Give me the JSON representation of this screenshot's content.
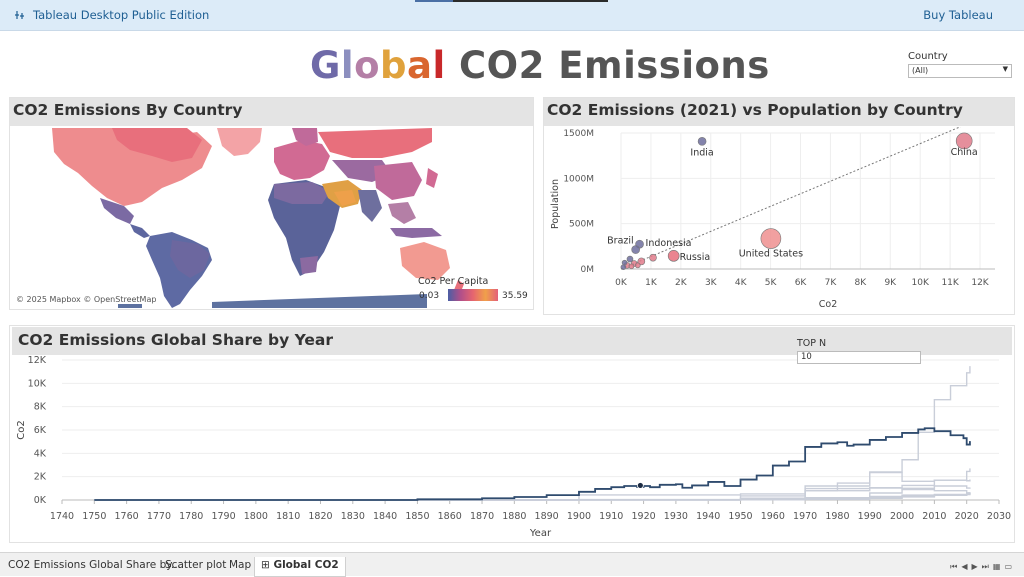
{
  "app": {
    "title": "Tableau Desktop Public Edition",
    "buy_label": "Buy Tableau"
  },
  "dashboard": {
    "title_letters": [
      {
        "ch": "G",
        "color": "#6f6aa8"
      },
      {
        "ch": "l",
        "color": "#8c8fbf"
      },
      {
        "ch": "o",
        "color": "#b47fa6"
      },
      {
        "ch": "b",
        "color": "#e0a23c"
      },
      {
        "ch": "a",
        "color": "#d9662f"
      },
      {
        "ch": "l",
        "color": "#c8282a"
      },
      {
        "ch": " CO2 Emissions",
        "color": "#555555"
      }
    ]
  },
  "filter": {
    "label": "Country",
    "value": "(All)"
  },
  "map_panel": {
    "title": "CO2 Emissions By Country",
    "credit": "© 2025 Mapbox © OpenStreetMap",
    "legend": {
      "title": "Co2 Per Capita",
      "min": "0.03",
      "max": "35.59"
    }
  },
  "scatter_panel": {
    "title": "CO2 Emissions (2021) vs Population by Country"
  },
  "line_panel": {
    "title": "CO2 Emissions Global Share by Year",
    "topn": {
      "label": "TOP N",
      "value": "10"
    }
  },
  "chart_data": [
    {
      "type": "scatter",
      "xlabel": "Co2",
      "ylabel": "Population",
      "x_ticks": [
        "0K",
        "1K",
        "2K",
        "3K",
        "4K",
        "5K",
        "6K",
        "7K",
        "8K",
        "9K",
        "10K",
        "11K",
        "12K"
      ],
      "y_ticks": [
        "0M",
        "500M",
        "1000M",
        "1500M"
      ],
      "xlim": [
        0,
        12500
      ],
      "ylim": [
        0,
        1500
      ],
      "trend_line": [
        [
          0,
          0
        ],
        [
          11400,
          1500
        ]
      ],
      "points": [
        {
          "label": "China",
          "x": 11470,
          "y": 1412,
          "size": 8,
          "color": "#e07b8b"
        },
        {
          "label": "India",
          "x": 2710,
          "y": 1408,
          "size": 4,
          "color": "#6e6f9e"
        },
        {
          "label": "United States",
          "x": 5010,
          "y": 336,
          "size": 10,
          "color": "#ef8f8f"
        },
        {
          "label": "Russia",
          "x": 1760,
          "y": 145,
          "size": 5.5,
          "color": "#e86f7c"
        },
        {
          "label": "Indonesia",
          "x": 620,
          "y": 274,
          "size": 4,
          "color": "#6e6f9e"
        },
        {
          "label": "Brazil",
          "x": 490,
          "y": 214,
          "size": 4,
          "color": "#6e6f9e"
        },
        {
          "label": "",
          "x": 1070,
          "y": 125,
          "size": 3.5,
          "color": "#e07b8b"
        },
        {
          "label": "",
          "x": 680,
          "y": 84,
          "size": 3.5,
          "color": "#e07b8b"
        },
        {
          "label": "",
          "x": 440,
          "y": 60,
          "size": 3,
          "color": "#e07b8b"
        },
        {
          "label": "",
          "x": 300,
          "y": 110,
          "size": 3,
          "color": "#6e6f9e"
        },
        {
          "label": "",
          "x": 200,
          "y": 40,
          "size": 3,
          "color": "#e07b8b"
        },
        {
          "label": "",
          "x": 120,
          "y": 70,
          "size": 2.5,
          "color": "#6e6f9e"
        },
        {
          "label": "",
          "x": 80,
          "y": 20,
          "size": 2.5,
          "color": "#6e6f9e"
        },
        {
          "label": "",
          "x": 350,
          "y": 30,
          "size": 2.5,
          "color": "#e07b8b"
        },
        {
          "label": "",
          "x": 560,
          "y": 40,
          "size": 2.5,
          "color": "#e07b8b"
        }
      ]
    },
    {
      "type": "line",
      "xlabel": "Year",
      "ylabel": "Co2",
      "x_ticks": [
        "1740",
        "1750",
        "1760",
        "1770",
        "1780",
        "1790",
        "1800",
        "1810",
        "1820",
        "1830",
        "1840",
        "1850",
        "1860",
        "1870",
        "1880",
        "1890",
        "1900",
        "1910",
        "1920",
        "1930",
        "1940",
        "1950",
        "1960",
        "1970",
        "1980",
        "1990",
        "2000",
        "2010",
        "2020",
        "2030"
      ],
      "y_ticks": [
        "0K",
        "2K",
        "4K",
        "6K",
        "8K",
        "10K",
        "12K"
      ],
      "xlim": [
        1740,
        2030
      ],
      "ylim": [
        0,
        12000
      ],
      "highlight_color": "#2f4b6e",
      "other_color": "#c9ced9",
      "series": [
        {
          "highlight": true,
          "x": [
            1750,
            1800,
            1850,
            1870,
            1880,
            1890,
            1900,
            1905,
            1910,
            1914,
            1918,
            1920,
            1922,
            1925,
            1930,
            1932,
            1935,
            1940,
            1945,
            1950,
            1955,
            1960,
            1965,
            1970,
            1975,
            1980,
            1983,
            1985,
            1990,
            1995,
            2000,
            2005,
            2007,
            2010,
            2015,
            2019,
            2020,
            2021
          ],
          "y": [
            0,
            0,
            60,
            150,
            260,
            420,
            700,
            950,
            1100,
            1200,
            1120,
            1200,
            1100,
            1300,
            1350,
            1050,
            1250,
            1550,
            1200,
            1750,
            2100,
            2950,
            3300,
            4550,
            4850,
            4950,
            4650,
            4750,
            5150,
            5400,
            5750,
            6050,
            6150,
            5900,
            5550,
            5300,
            4750,
            5050
          ]
        },
        {
          "highlight": false,
          "x": [
            1750,
            1850,
            1900,
            1950,
            1970,
            1980,
            1990,
            2000,
            2005,
            2010,
            2015,
            2020,
            2021
          ],
          "y": [
            0,
            0,
            10,
            80,
            800,
            1450,
            2400,
            3450,
            5800,
            8600,
            9800,
            10900,
            11470
          ]
        },
        {
          "highlight": false,
          "x": [
            1750,
            1900,
            1950,
            1970,
            1990,
            2000,
            2010,
            2020,
            2021
          ],
          "y": [
            0,
            10,
            60,
            200,
            600,
            1000,
            1700,
            2450,
            2710
          ]
        },
        {
          "highlight": false,
          "x": [
            1750,
            1850,
            1900,
            1950,
            1970,
            1990,
            2000,
            2010,
            2020,
            2021
          ],
          "y": [
            0,
            0,
            40,
            350,
            1200,
            2350,
            1600,
            1700,
            1650,
            1760
          ]
        },
        {
          "highlight": false,
          "x": [
            1750,
            1900,
            1950,
            1970,
            1990,
            2000,
            2010,
            2020,
            2021
          ],
          "y": [
            0,
            10,
            150,
            800,
            1050,
            1250,
            1200,
            1020,
            1070
          ]
        },
        {
          "highlight": false,
          "x": [
            1750,
            1850,
            1900,
            1950,
            1970,
            1990,
            2000,
            2010,
            2020,
            2021
          ],
          "y": [
            0,
            20,
            430,
            520,
            980,
            1020,
            900,
            800,
            620,
            680
          ]
        },
        {
          "highlight": false,
          "x": [
            1750,
            1900,
            1950,
            1970,
            1990,
            2000,
            2010,
            2020,
            2021
          ],
          "y": [
            0,
            5,
            50,
            200,
            300,
            420,
            480,
            500,
            560
          ]
        },
        {
          "highlight": false,
          "x": [
            1750,
            1900,
            1950,
            1970,
            1990,
            2000,
            2010,
            2020,
            2021
          ],
          "y": [
            0,
            5,
            20,
            80,
            200,
            310,
            420,
            560,
            600
          ]
        },
        {
          "highlight": false,
          "x": [
            1750,
            1900,
            1950,
            1970,
            1990,
            2000,
            2010,
            2020,
            2021
          ],
          "y": [
            0,
            5,
            30,
            120,
            250,
            330,
            420,
            590,
            620
          ]
        },
        {
          "highlight": false,
          "x": [
            1750,
            1900,
            1950,
            1970,
            1990,
            2000,
            2010,
            2020,
            2021
          ],
          "y": [
            0,
            5,
            15,
            60,
            150,
            260,
            400,
            470,
            490
          ]
        }
      ],
      "marker": {
        "x": 1919,
        "y": 1250
      }
    }
  ],
  "tabs": [
    {
      "label": "CO2 Emissions Global Share by...",
      "icon": "",
      "active": false
    },
    {
      "label": "Scatter plot",
      "icon": "",
      "active": false
    },
    {
      "label": "Map",
      "icon": "",
      "active": false
    },
    {
      "label": "Global CO2",
      "icon": "⊞",
      "active": true
    }
  ],
  "nav_icons": [
    "first-icon",
    "prev-icon",
    "next-icon",
    "last-icon",
    "grid-icon",
    "view-icon"
  ]
}
